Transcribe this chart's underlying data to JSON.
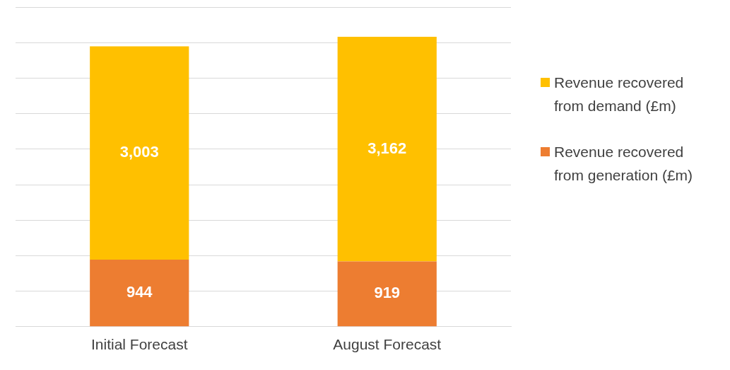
{
  "chart_data": {
    "type": "bar",
    "stacked": true,
    "categories": [
      "Initial Forecast",
      "August Forecast"
    ],
    "series": [
      {
        "name": "Revenue recovered from generation (£m)",
        "color": "#ed7d31",
        "values": [
          944,
          919
        ],
        "value_labels": [
          "944",
          "919"
        ]
      },
      {
        "name": "Revenue recovered from demand (£m)",
        "color": "#ffc000",
        "values": [
          3003,
          3162
        ],
        "value_labels": [
          "3,003",
          "3,162"
        ]
      }
    ],
    "ylim": [
      0,
      4500
    ],
    "yticks": [
      0,
      500,
      1000,
      1500,
      2000,
      2500,
      3000,
      3500,
      4000,
      4500
    ],
    "tick_labels": "x",
    "grid": "y",
    "legend": "right"
  }
}
